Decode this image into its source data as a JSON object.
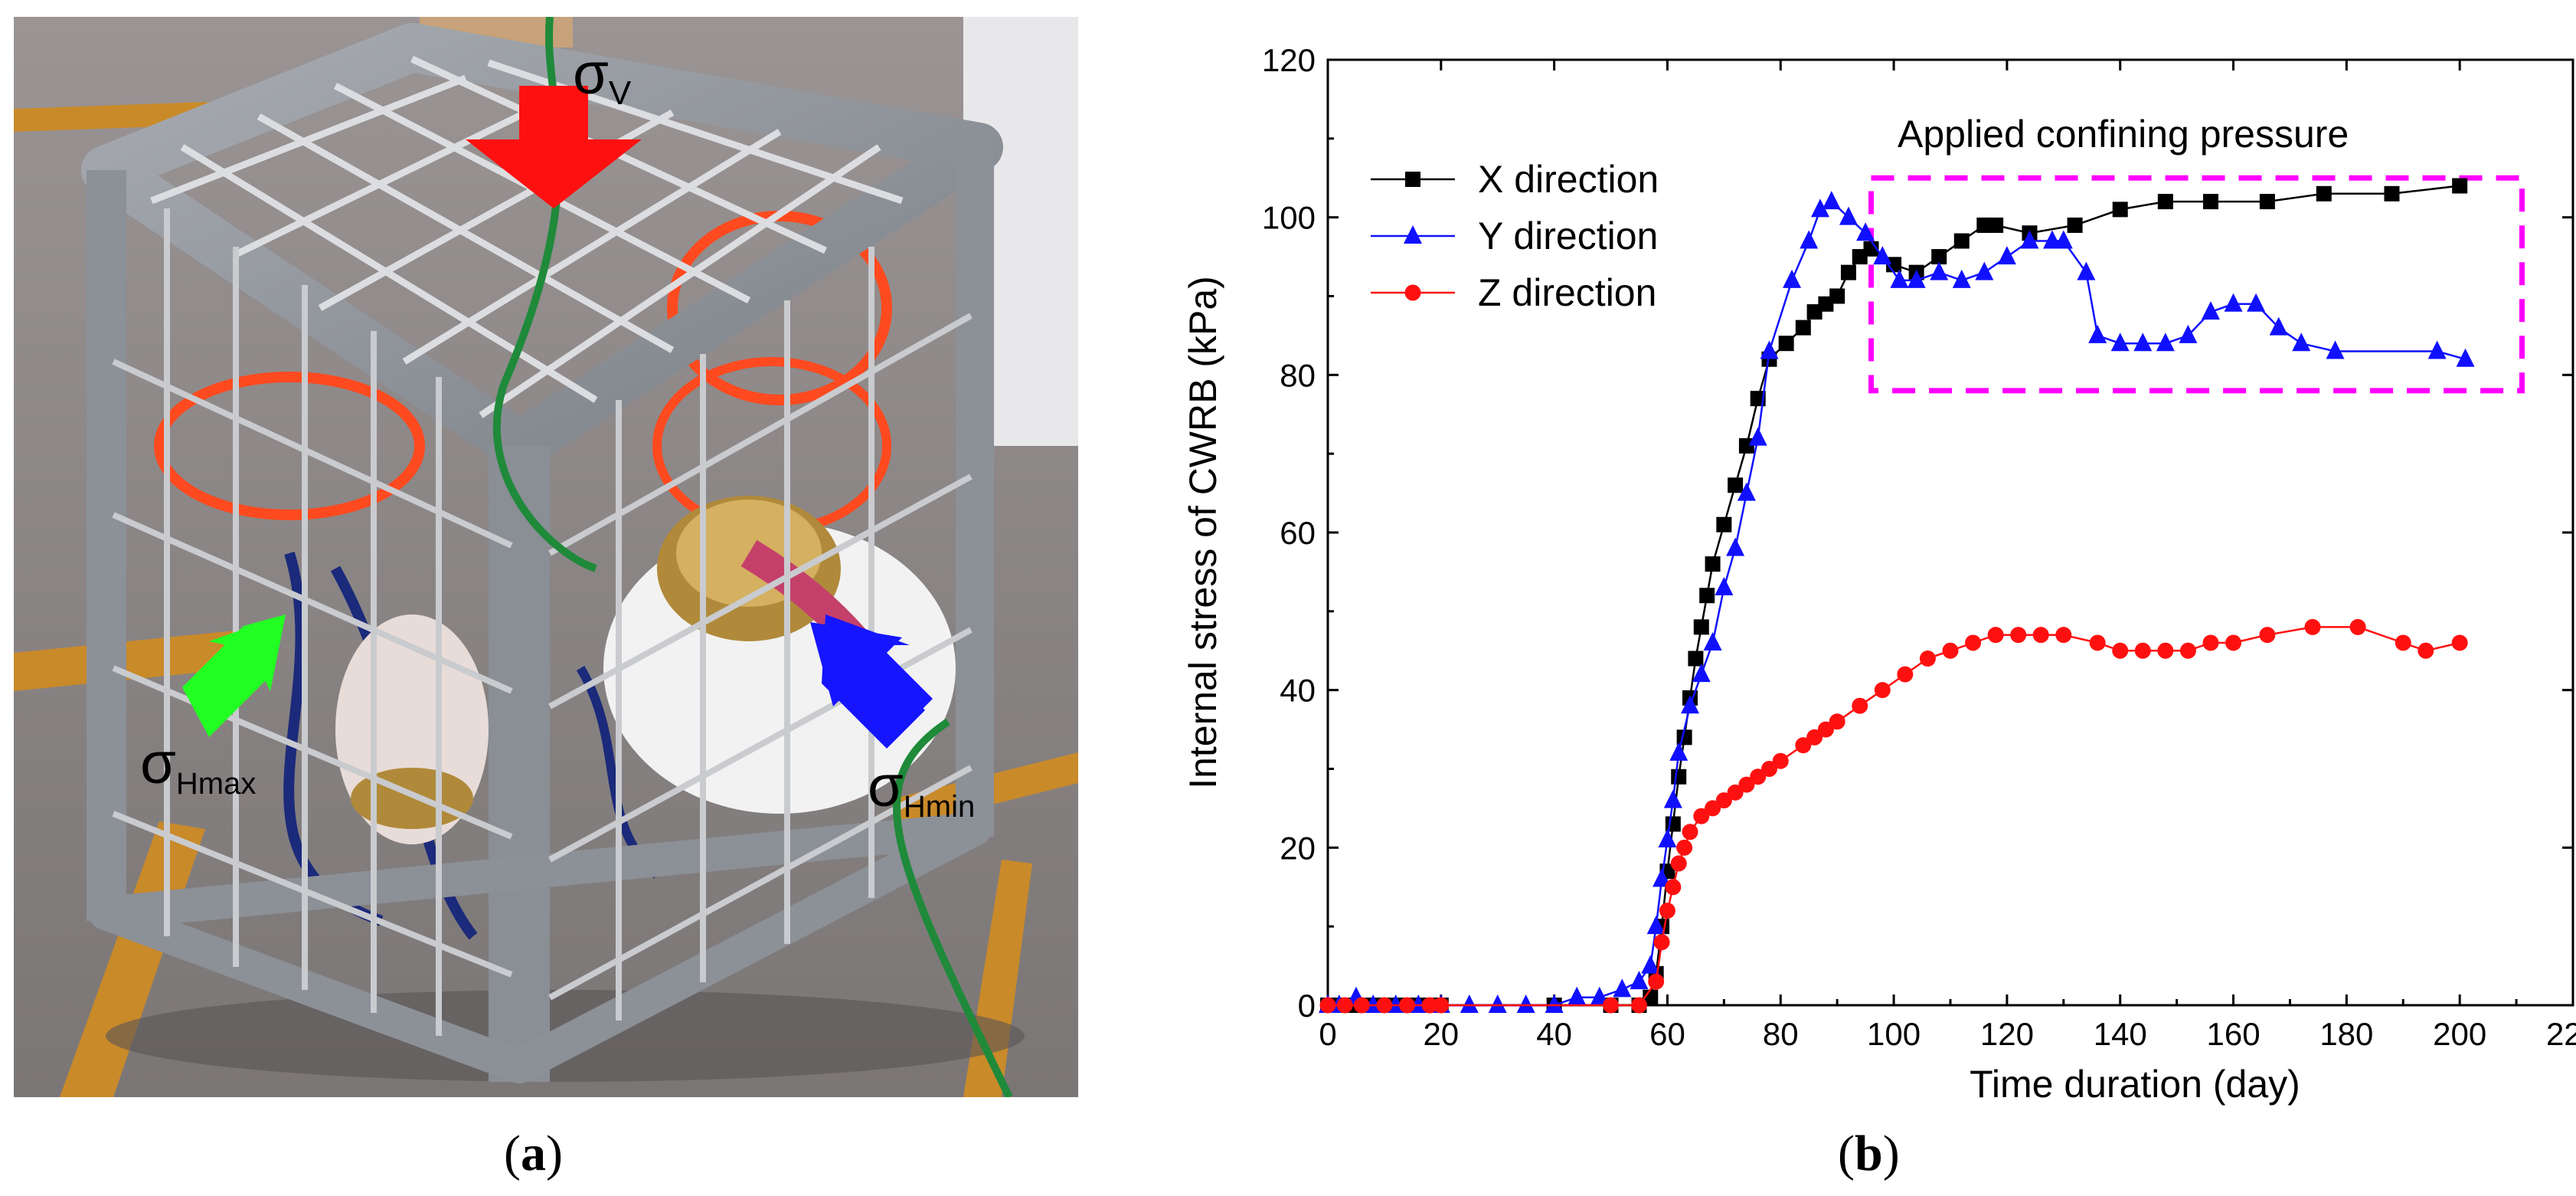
{
  "panels": {
    "a": {
      "caption_open": "(",
      "caption_letter": "a",
      "caption_close": ")",
      "labels": {
        "sigma_v": {
          "symbol": "σ",
          "sub": "V"
        },
        "sigma_hmax": {
          "symbol": "σ",
          "sub": "Hmax"
        },
        "sigma_hmin": {
          "symbol": "σ",
          "sub": "Hmin"
        }
      },
      "arrow_colors": {
        "sigma_v": "#ff1010",
        "sigma_hmax": "#22ff22",
        "sigma_hmin": "#1515ff"
      }
    },
    "b": {
      "caption_open": "(",
      "caption_letter": "b",
      "caption_close": ")"
    }
  },
  "chart_data": {
    "type": "line",
    "xlabel": "Time duration (day)",
    "ylabel": "Internal stress of CWRB (kPa)",
    "xlim": [
      0,
      220
    ],
    "ylim": [
      0,
      120
    ],
    "xticks": [
      0,
      20,
      40,
      60,
      80,
      100,
      120,
      140,
      160,
      180,
      200,
      220
    ],
    "yticks": [
      0,
      20,
      40,
      60,
      80,
      100,
      120
    ],
    "grid": false,
    "legend_position": "top-left",
    "annotation": {
      "text": "Applied confining pressure",
      "box_x": [
        96,
        211
      ],
      "box_y": [
        78,
        105
      ],
      "color": "#ff00ff"
    },
    "series": [
      {
        "name": "X direction",
        "color": "#000000",
        "marker": "square",
        "points": [
          [
            0,
            0
          ],
          [
            2,
            0
          ],
          [
            4,
            0
          ],
          [
            6,
            0
          ],
          [
            8,
            0
          ],
          [
            10,
            0
          ],
          [
            12,
            0
          ],
          [
            14,
            0
          ],
          [
            16,
            0
          ],
          [
            18,
            0
          ],
          [
            20,
            0
          ],
          [
            40,
            0
          ],
          [
            50,
            0
          ],
          [
            55,
            0
          ],
          [
            57,
            1
          ],
          [
            58,
            4
          ],
          [
            59,
            10
          ],
          [
            60,
            17
          ],
          [
            61,
            23
          ],
          [
            62,
            29
          ],
          [
            63,
            34
          ],
          [
            64,
            39
          ],
          [
            65,
            44
          ],
          [
            66,
            48
          ],
          [
            67,
            52
          ],
          [
            68,
            56
          ],
          [
            70,
            61
          ],
          [
            72,
            66
          ],
          [
            74,
            71
          ],
          [
            76,
            77
          ],
          [
            78,
            82
          ],
          [
            81,
            84
          ],
          [
            84,
            86
          ],
          [
            86,
            88
          ],
          [
            88,
            89
          ],
          [
            90,
            90
          ],
          [
            92,
            93
          ],
          [
            94,
            95
          ],
          [
            96,
            96
          ],
          [
            100,
            94
          ],
          [
            104,
            93
          ],
          [
            108,
            95
          ],
          [
            112,
            97
          ],
          [
            116,
            99
          ],
          [
            118,
            99
          ],
          [
            124,
            98
          ],
          [
            132,
            99
          ],
          [
            140,
            101
          ],
          [
            148,
            102
          ],
          [
            156,
            102
          ],
          [
            166,
            102
          ],
          [
            176,
            103
          ],
          [
            188,
            103
          ],
          [
            200,
            104
          ]
        ]
      },
      {
        "name": "Y direction",
        "color": "#1010ff",
        "marker": "triangle",
        "points": [
          [
            0,
            0
          ],
          [
            2,
            0
          ],
          [
            5,
            1
          ],
          [
            8,
            0
          ],
          [
            12,
            0
          ],
          [
            16,
            0
          ],
          [
            20,
            0
          ],
          [
            25,
            0
          ],
          [
            30,
            0
          ],
          [
            35,
            0
          ],
          [
            40,
            0
          ],
          [
            44,
            1
          ],
          [
            48,
            1
          ],
          [
            52,
            2
          ],
          [
            55,
            3
          ],
          [
            57,
            5
          ],
          [
            58,
            10
          ],
          [
            59,
            16
          ],
          [
            60,
            21
          ],
          [
            61,
            26
          ],
          [
            62,
            32
          ],
          [
            64,
            38
          ],
          [
            66,
            42
          ],
          [
            68,
            46
          ],
          [
            70,
            53
          ],
          [
            72,
            58
          ],
          [
            74,
            65
          ],
          [
            76,
            72
          ],
          [
            78,
            83
          ],
          [
            82,
            92
          ],
          [
            85,
            97
          ],
          [
            87,
            101
          ],
          [
            89,
            102
          ],
          [
            92,
            100
          ],
          [
            95,
            98
          ],
          [
            98,
            95
          ],
          [
            101,
            92
          ],
          [
            104,
            92
          ],
          [
            108,
            93
          ],
          [
            112,
            92
          ],
          [
            116,
            93
          ],
          [
            120,
            95
          ],
          [
            124,
            97
          ],
          [
            128,
            97
          ],
          [
            130,
            97
          ],
          [
            134,
            93
          ],
          [
            136,
            85
          ],
          [
            140,
            84
          ],
          [
            144,
            84
          ],
          [
            148,
            84
          ],
          [
            152,
            85
          ],
          [
            156,
            88
          ],
          [
            160,
            89
          ],
          [
            164,
            89
          ],
          [
            168,
            86
          ],
          [
            172,
            84
          ],
          [
            178,
            83
          ],
          [
            196,
            83
          ],
          [
            201,
            82
          ]
        ]
      },
      {
        "name": "Z direction",
        "color": "#ff1010",
        "marker": "circle",
        "points": [
          [
            0,
            0
          ],
          [
            3,
            0
          ],
          [
            6,
            0
          ],
          [
            10,
            0
          ],
          [
            14,
            0
          ],
          [
            18,
            0
          ],
          [
            20,
            0
          ],
          [
            50,
            0
          ],
          [
            55,
            0
          ],
          [
            58,
            3
          ],
          [
            59,
            8
          ],
          [
            60,
            12
          ],
          [
            61,
            15
          ],
          [
            62,
            18
          ],
          [
            63,
            20
          ],
          [
            64,
            22
          ],
          [
            66,
            24
          ],
          [
            68,
            25
          ],
          [
            70,
            26
          ],
          [
            72,
            27
          ],
          [
            74,
            28
          ],
          [
            76,
            29
          ],
          [
            78,
            30
          ],
          [
            80,
            31
          ],
          [
            84,
            33
          ],
          [
            86,
            34
          ],
          [
            88,
            35
          ],
          [
            90,
            36
          ],
          [
            94,
            38
          ],
          [
            98,
            40
          ],
          [
            102,
            42
          ],
          [
            106,
            44
          ],
          [
            110,
            45
          ],
          [
            114,
            46
          ],
          [
            118,
            47
          ],
          [
            122,
            47
          ],
          [
            126,
            47
          ],
          [
            130,
            47
          ],
          [
            136,
            46
          ],
          [
            140,
            45
          ],
          [
            144,
            45
          ],
          [
            148,
            45
          ],
          [
            152,
            45
          ],
          [
            156,
            46
          ],
          [
            160,
            46
          ],
          [
            166,
            47
          ],
          [
            174,
            48
          ],
          [
            182,
            48
          ],
          [
            190,
            46
          ],
          [
            194,
            45
          ],
          [
            200,
            46
          ]
        ]
      }
    ]
  }
}
